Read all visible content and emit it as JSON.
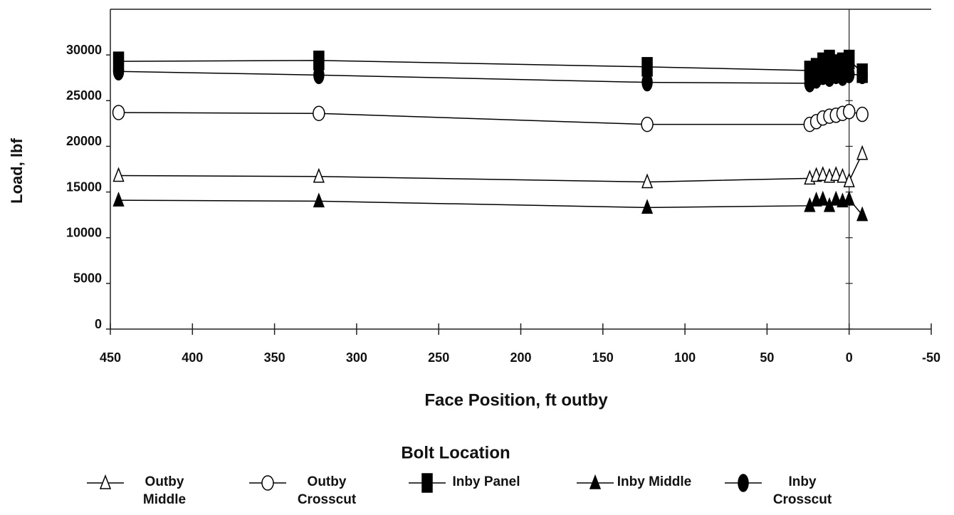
{
  "chart_data": {
    "type": "line",
    "xlabel": "Face Position, ft outby",
    "ylabel": "Load,  lbf",
    "legend_title": "Bolt Location",
    "x": [
      445,
      323,
      123,
      24,
      20,
      16,
      12,
      8,
      4,
      0,
      -8
    ],
    "xlim": [
      450,
      -50
    ],
    "xticks": [
      450,
      400,
      350,
      300,
      250,
      200,
      150,
      100,
      50,
      0,
      -50
    ],
    "ylim": [
      0,
      35000
    ],
    "yticks": [
      0,
      5000,
      10000,
      15000,
      20000,
      25000,
      30000
    ],
    "series": [
      {
        "name": "Outby Middle",
        "color": "#000000",
        "marker": "triangle-open",
        "values": [
          16800,
          16700,
          16100,
          16500,
          16800,
          16900,
          16700,
          16900,
          16700,
          16200,
          19200
        ]
      },
      {
        "name": "Outby Crosscut",
        "color": "#000000",
        "marker": "circle-open",
        "values": [
          23700,
          23600,
          22400,
          22400,
          22700,
          23100,
          23300,
          23400,
          23600,
          23800,
          23500
        ]
      },
      {
        "name": "Inby Panel",
        "color": "#000000",
        "marker": "square",
        "values": [
          29300,
          29400,
          28700,
          28300,
          28600,
          29200,
          29500,
          29000,
          29200,
          29500,
          28000
        ]
      },
      {
        "name": "Inby Middle",
        "color": "#000000",
        "marker": "triangle",
        "values": [
          14100,
          14000,
          13300,
          13500,
          14100,
          14200,
          13500,
          14200,
          14000,
          14200,
          12500
        ]
      },
      {
        "name": "Inby Crosscut",
        "color": "#000000",
        "marker": "ellipse",
        "values": [
          28200,
          27800,
          27000,
          26900,
          27300,
          27700,
          27500,
          27800,
          27600,
          27900,
          27800
        ]
      }
    ]
  }
}
